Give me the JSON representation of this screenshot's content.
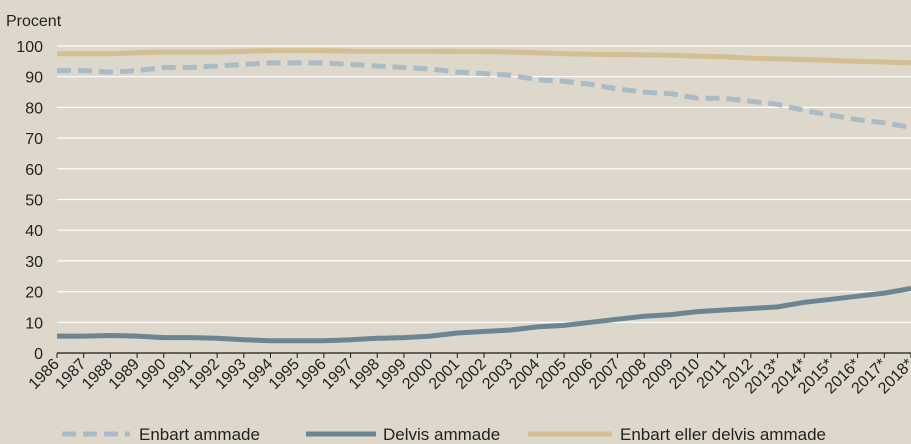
{
  "chart_data": {
    "type": "line",
    "ylabel": "Procent",
    "ylim": [
      0,
      100
    ],
    "yticks": [
      0,
      10,
      20,
      30,
      40,
      50,
      60,
      70,
      80,
      90,
      100
    ],
    "grid": "horizontal",
    "legend_position": "bottom",
    "categories": [
      "1986",
      "1987",
      "1988",
      "1989",
      "1990",
      "1991",
      "1992",
      "1993",
      "1994",
      "1995",
      "1996",
      "1997",
      "1998",
      "1999",
      "2000",
      "2001",
      "2002",
      "2003",
      "2004",
      "2005",
      "2006",
      "2007",
      "2008",
      "2009",
      "2010",
      "2011",
      "2012",
      "2013*",
      "2014*",
      "2015*",
      "2016*",
      "2017*",
      "2018*"
    ],
    "series": [
      {
        "name": "Enbart ammade",
        "style": "dashed",
        "color": "#a9bcc6",
        "values": [
          92,
          92,
          91.5,
          92,
          93,
          93,
          93.5,
          94,
          94.5,
          94.5,
          94.5,
          94,
          93.5,
          93,
          92.5,
          91.5,
          91,
          90.5,
          89,
          88.5,
          87.5,
          86,
          85,
          84.5,
          83,
          83,
          82,
          81,
          79,
          77.5,
          76,
          75,
          73.5
        ]
      },
      {
        "name": "Delvis ammade",
        "style": "solid",
        "color": "#6a8593",
        "values": [
          5.5,
          5.5,
          5.7,
          5.5,
          5,
          5,
          4.8,
          4.3,
          4,
          4,
          4,
          4.3,
          4.8,
          5,
          5.5,
          6.5,
          7,
          7.5,
          8.5,
          9,
          10,
          11,
          12,
          12.5,
          13.5,
          14,
          14.5,
          15,
          16.5,
          17.5,
          18.5,
          19.5,
          21
        ]
      },
      {
        "name": "Enbart eller delvis ammade",
        "style": "solid",
        "color": "#d3bf91",
        "values": [
          97.5,
          97.5,
          97.5,
          97.8,
          98,
          98,
          98,
          98.3,
          98.5,
          98.5,
          98.5,
          98.3,
          98.3,
          98.3,
          98.3,
          98.2,
          98.2,
          98,
          97.8,
          97.5,
          97.3,
          97.2,
          97.1,
          97,
          96.7,
          96.5,
          96,
          95.8,
          95.6,
          95.3,
          95,
          94.8,
          94.5
        ]
      }
    ]
  },
  "colors": {
    "background": "#ddd8cb",
    "gridline": "#ffffff",
    "axis": "#1a1a1a"
  }
}
